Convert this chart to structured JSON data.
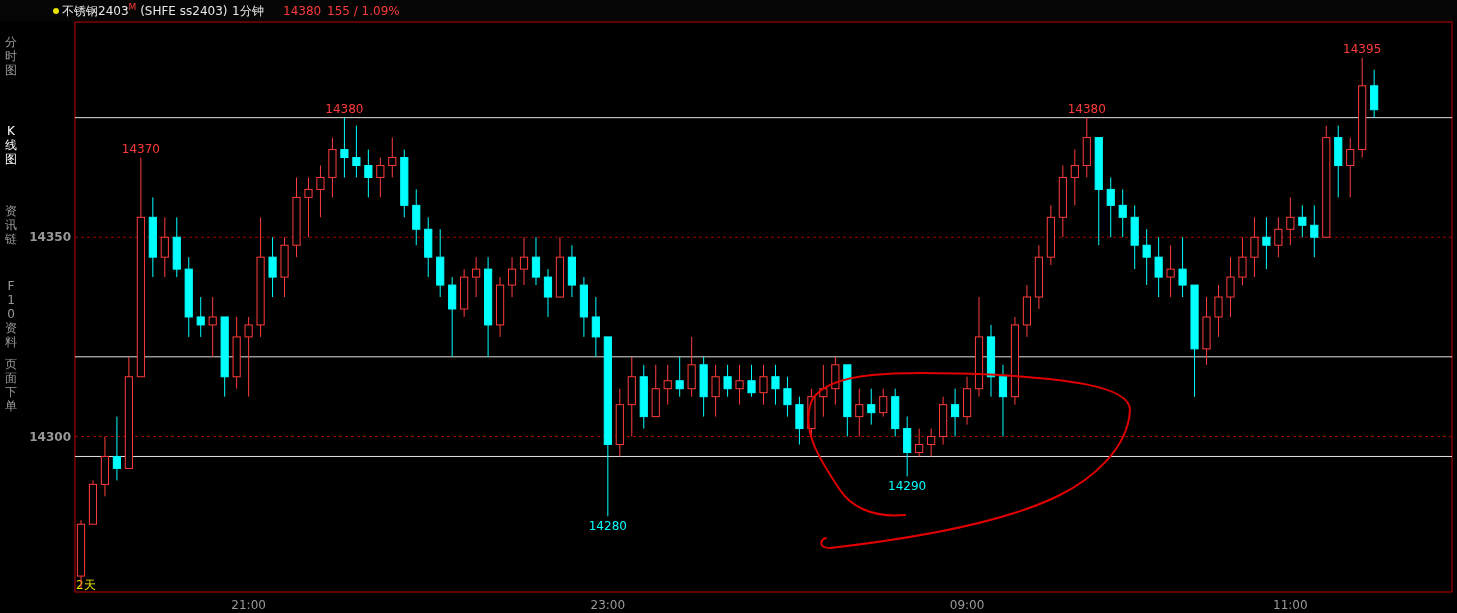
{
  "chart_data": {
    "type": "candlestick",
    "title": "不锈钢2403$^{M}$ (SHFE ss2403)",
    "subtitle": "1分钟",
    "annotations": [
      "14380",
      "155 / 1.09%",
      "2天",
      "分时图",
      "K线图",
      "资讯链",
      "F10资料",
      "页面下单",
      {
        "text": "14370",
        "y": 14370
      },
      {
        "text": "14380",
        "y": 14380
      },
      {
        "text": "14280",
        "y": 14280
      },
      {
        "text": "14290",
        "y": 14290
      },
      {
        "text": "14380",
        "y": 14380
      },
      {
        "text": "14395",
        "y": 14395
      }
    ],
    "categories": [
      null,
      null,
      null,
      null,
      null,
      null,
      null,
      null,
      null,
      null,
      null,
      null,
      null,
      null,
      "21:00",
      null,
      null,
      null,
      null,
      null,
      null,
      null,
      null,
      null,
      null,
      null,
      null,
      null,
      null,
      null,
      null,
      null,
      null,
      null,
      null,
      null,
      null,
      null,
      null,
      null,
      null,
      null,
      null,
      null,
      "23:00",
      null,
      null,
      null,
      null,
      null,
      null,
      null,
      null,
      null,
      null,
      null,
      null,
      null,
      null,
      null,
      null,
      null,
      null,
      null,
      null,
      null,
      null,
      null,
      null,
      null,
      null,
      null,
      null,
      null,
      "09:00",
      null,
      null,
      null,
      null,
      null,
      null,
      null,
      null,
      null,
      null,
      null,
      null,
      null,
      null,
      null,
      null,
      null,
      null,
      null,
      null,
      null,
      null,
      null,
      null,
      null,
      null,
      "11:00",
      null,
      null,
      null,
      null,
      null,
      null,
      null,
      null,
      null,
      null,
      null,
      null,
      null
    ],
    "ohlc": [
      [
        14265,
        14279,
        14262,
        14278
      ],
      [
        14278,
        14289,
        14278,
        14288
      ],
      [
        14288,
        14300,
        14285,
        14295
      ],
      [
        14295,
        14305,
        14289,
        14292
      ],
      [
        14292,
        14320,
        14292,
        14315
      ],
      [
        14315,
        14370,
        14315,
        14355
      ],
      [
        14355,
        14360,
        14340,
        14345
      ],
      [
        14345,
        14355,
        14340,
        14350
      ],
      [
        14350,
        14355,
        14340,
        14342
      ],
      [
        14342,
        14345,
        14325,
        14330
      ],
      [
        14330,
        14335,
        14325,
        14328
      ],
      [
        14328,
        14335,
        14320,
        14330
      ],
      [
        14330,
        14330,
        14310,
        14315
      ],
      [
        14315,
        14330,
        14312,
        14325
      ],
      [
        14325,
        14330,
        14310,
        14328
      ],
      [
        14328,
        14355,
        14325,
        14345
      ],
      [
        14345,
        14350,
        14335,
        14340
      ],
      [
        14340,
        14350,
        14335,
        14348
      ],
      [
        14348,
        14365,
        14345,
        14360
      ],
      [
        14360,
        14365,
        14350,
        14362
      ],
      [
        14362,
        14368,
        14355,
        14365
      ],
      [
        14365,
        14375,
        14360,
        14372
      ],
      [
        14372,
        14380,
        14365,
        14370
      ],
      [
        14370,
        14378,
        14365,
        14368
      ],
      [
        14368,
        14372,
        14360,
        14365
      ],
      [
        14365,
        14370,
        14360,
        14368
      ],
      [
        14368,
        14375,
        14365,
        14370
      ],
      [
        14370,
        14372,
        14355,
        14358
      ],
      [
        14358,
        14362,
        14348,
        14352
      ],
      [
        14352,
        14355,
        14340,
        14345
      ],
      [
        14345,
        14352,
        14335,
        14338
      ],
      [
        14338,
        14340,
        14320,
        14332
      ],
      [
        14332,
        14342,
        14330,
        14340
      ],
      [
        14340,
        14345,
        14335,
        14342
      ],
      [
        14342,
        14345,
        14320,
        14328
      ],
      [
        14328,
        14340,
        14325,
        14338
      ],
      [
        14338,
        14345,
        14335,
        14342
      ],
      [
        14342,
        14350,
        14338,
        14345
      ],
      [
        14345,
        14350,
        14338,
        14340
      ],
      [
        14340,
        14342,
        14330,
        14335
      ],
      [
        14335,
        14350,
        14335,
        14345
      ],
      [
        14345,
        14348,
        14335,
        14338
      ],
      [
        14338,
        14340,
        14325,
        14330
      ],
      [
        14330,
        14335,
        14320,
        14325
      ],
      [
        14325,
        14325,
        14280,
        14298
      ],
      [
        14298,
        14312,
        14295,
        14308
      ],
      [
        14308,
        14320,
        14300,
        14315
      ],
      [
        14315,
        14318,
        14302,
        14305
      ],
      [
        14305,
        14318,
        14305,
        14312
      ],
      [
        14312,
        14318,
        14308,
        14314
      ],
      [
        14314,
        14320,
        14310,
        14312
      ],
      [
        14312,
        14325,
        14310,
        14318
      ],
      [
        14318,
        14320,
        14305,
        14310
      ],
      [
        14310,
        14318,
        14305,
        14315
      ],
      [
        14315,
        14318,
        14310,
        14312
      ],
      [
        14312,
        14318,
        14308,
        14314
      ],
      [
        14314,
        14318,
        14310,
        14311
      ],
      [
        14311,
        14318,
        14308,
        14315
      ],
      [
        14315,
        14318,
        14308,
        14312
      ],
      [
        14312,
        14315,
        14305,
        14308
      ],
      [
        14308,
        14310,
        14298,
        14302
      ],
      [
        14302,
        14312,
        14300,
        14310
      ],
      [
        14310,
        14318,
        14305,
        14312
      ],
      [
        14312,
        14320,
        14308,
        14318
      ],
      [
        14318,
        14318,
        14300,
        14305
      ],
      [
        14305,
        14312,
        14300,
        14308
      ],
      [
        14308,
        14312,
        14303,
        14306
      ],
      [
        14306,
        14312,
        14305,
        14310
      ],
      [
        14310,
        14312,
        14300,
        14302
      ],
      [
        14302,
        14305,
        14290,
        14296
      ],
      [
        14296,
        14302,
        14295,
        14298
      ],
      [
        14298,
        14302,
        14295,
        14300
      ],
      [
        14300,
        14310,
        14298,
        14308
      ],
      [
        14308,
        14312,
        14300,
        14305
      ],
      [
        14305,
        14315,
        14303,
        14312
      ],
      [
        14312,
        14335,
        14310,
        14325
      ],
      [
        14325,
        14328,
        14310,
        14315
      ],
      [
        14315,
        14318,
        14300,
        14310
      ],
      [
        14310,
        14330,
        14308,
        14328
      ],
      [
        14328,
        14338,
        14325,
        14335
      ],
      [
        14335,
        14348,
        14332,
        14345
      ],
      [
        14345,
        14358,
        14343,
        14355
      ],
      [
        14355,
        14368,
        14350,
        14365
      ],
      [
        14365,
        14372,
        14358,
        14368
      ],
      [
        14368,
        14380,
        14365,
        14375
      ],
      [
        14375,
        14375,
        14348,
        14362
      ],
      [
        14362,
        14365,
        14350,
        14358
      ],
      [
        14358,
        14362,
        14350,
        14355
      ],
      [
        14355,
        14358,
        14342,
        14348
      ],
      [
        14348,
        14352,
        14338,
        14345
      ],
      [
        14345,
        14350,
        14335,
        14340
      ],
      [
        14340,
        14348,
        14335,
        14342
      ],
      [
        14342,
        14350,
        14335,
        14338
      ],
      [
        14338,
        14338,
        14310,
        14322
      ],
      [
        14322,
        14335,
        14318,
        14330
      ],
      [
        14330,
        14338,
        14325,
        14335
      ],
      [
        14335,
        14345,
        14330,
        14340
      ],
      [
        14340,
        14350,
        14338,
        14345
      ],
      [
        14345,
        14355,
        14340,
        14350
      ],
      [
        14350,
        14355,
        14342,
        14348
      ],
      [
        14348,
        14355,
        14345,
        14352
      ],
      [
        14352,
        14360,
        14348,
        14355
      ],
      [
        14355,
        14358,
        14350,
        14353
      ],
      [
        14353,
        14358,
        14345,
        14350
      ],
      [
        14350,
        14378,
        14350,
        14375
      ],
      [
        14375,
        14378,
        14360,
        14368
      ],
      [
        14368,
        14375,
        14360,
        14372
      ],
      [
        14372,
        14395,
        14370,
        14388
      ],
      [
        14388,
        14392,
        14380,
        14382
      ],
      null,
      null,
      null,
      null,
      null,
      null
    ],
    "ylim": [
      14261,
      14404
    ],
    "yticks": [
      14300,
      14350
    ],
    "grid": "y",
    "ref_lines": [
      {
        "axis": "y",
        "value": 14380,
        "color": "#e0e0e0"
      },
      {
        "axis": "y",
        "value": 14320,
        "color": "#e0e0e0"
      },
      {
        "axis": "y",
        "value": 14295,
        "color": "#e0e0e0"
      }
    ]
  }
}
